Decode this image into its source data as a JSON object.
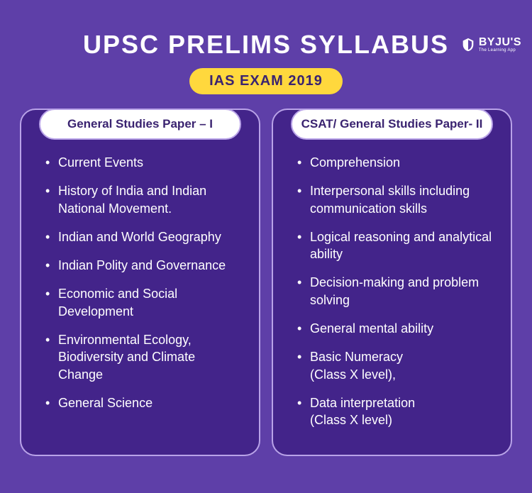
{
  "logo": {
    "brand": "BYJU'S",
    "tagline": "The Learning App"
  },
  "title": "UPSC PRELIMS SYLLABUS",
  "subtitle": "IAS EXAM 2019",
  "colors": {
    "background": "#5e3fa8",
    "panel_bg": "#43248a",
    "panel_border": "#b9a3e8",
    "subtitle_bg": "#ffd83d",
    "subtitle_text": "#3a2370",
    "header_bg": "#ffffff",
    "header_text": "#3a2370",
    "text": "#ffffff"
  },
  "panels": [
    {
      "header": "General Studies Paper – I",
      "items": [
        "Current Events",
        "History of India and Indian National Movement.",
        "Indian and World Geography",
        "Indian Polity and Governance",
        "Economic and Social Development",
        "Environmental Ecology, Biodiversity and Climate Change",
        "General Science"
      ]
    },
    {
      "header": "CSAT/ General Studies Paper- II",
      "items": [
        "Comprehension",
        "Interpersonal skills including communication skills",
        "Logical reasoning and analytical ability",
        "Decision-making and problem solving",
        "General mental ability",
        "Basic Numeracy\n(Class X level),",
        "Data interpretation\n(Class X level)"
      ]
    }
  ]
}
